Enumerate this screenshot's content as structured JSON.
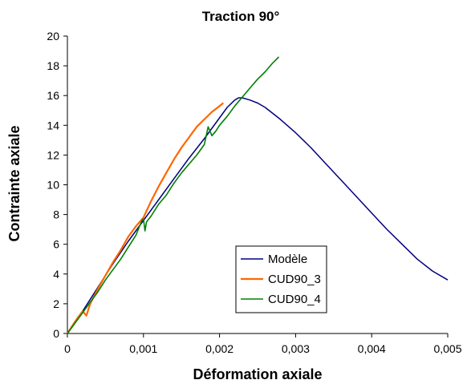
{
  "chart_data": {
    "type": "line",
    "title": "Traction 90°",
    "xlabel": "Déformation axiale",
    "ylabel": "Contrainte axiale",
    "xlim": [
      0,
      0.005
    ],
    "ylim": [
      0,
      20
    ],
    "x_ticks": [
      0,
      0.001,
      0.002,
      0.003,
      0.004,
      0.005
    ],
    "x_tick_labels": [
      "0",
      "0,001",
      "0,002",
      "0,003",
      "0,004",
      "0,005"
    ],
    "y_ticks": [
      0,
      2,
      4,
      6,
      8,
      10,
      12,
      14,
      16,
      18,
      20
    ],
    "y_tick_labels": [
      "0",
      "2",
      "4",
      "6",
      "8",
      "10",
      "12",
      "14",
      "16",
      "18",
      "20"
    ],
    "grid": false,
    "legend_position": "bottom-right",
    "series": [
      {
        "name": "Modèle",
        "color": "#000080",
        "x": [
          0,
          0.0002,
          0.0004,
          0.0006,
          0.0008,
          0.001,
          0.0012,
          0.0014,
          0.0016,
          0.0018,
          0.002,
          0.0021,
          0.0022,
          0.00225,
          0.0023,
          0.0024,
          0.0025,
          0.0026,
          0.0028,
          0.003,
          0.0032,
          0.0034,
          0.0036,
          0.0038,
          0.004,
          0.0042,
          0.0044,
          0.0046,
          0.0048,
          0.005
        ],
        "y": [
          0,
          1.5,
          3.1,
          4.7,
          6.2,
          7.6,
          9.0,
          10.4,
          11.8,
          13.1,
          14.5,
          15.2,
          15.7,
          15.85,
          15.85,
          15.7,
          15.5,
          15.2,
          14.4,
          13.5,
          12.5,
          11.4,
          10.3,
          9.2,
          8.1,
          7.0,
          6.0,
          5.0,
          4.2,
          3.6
        ]
      },
      {
        "name": "CUD90_3",
        "color": "#FF6600",
        "x": [
          0,
          0.0001,
          0.0002,
          0.00025,
          0.0003,
          0.0004,
          0.0005,
          0.0006,
          0.0007,
          0.0008,
          0.0009,
          0.001,
          0.0011,
          0.0012,
          0.0013,
          0.0014,
          0.0015,
          0.0016,
          0.0017,
          0.0018,
          0.0019,
          0.002,
          0.00205
        ],
        "y": [
          0,
          0.8,
          1.5,
          1.2,
          2.0,
          3.0,
          3.9,
          4.8,
          5.6,
          6.5,
          7.2,
          7.8,
          8.9,
          9.9,
          10.8,
          11.7,
          12.5,
          13.2,
          13.9,
          14.4,
          14.9,
          15.3,
          15.5
        ]
      },
      {
        "name": "CUD90_4",
        "color": "#008000",
        "x": [
          0,
          0.0001,
          0.0002,
          0.0003,
          0.0004,
          0.0005,
          0.0006,
          0.0007,
          0.0008,
          0.0009,
          0.00098,
          0.001,
          0.00102,
          0.00104,
          0.0011,
          0.0012,
          0.0013,
          0.0014,
          0.0015,
          0.0016,
          0.0017,
          0.0018,
          0.00185,
          0.0019,
          0.00195,
          0.002,
          0.0021,
          0.0022,
          0.0023,
          0.0024,
          0.0025,
          0.0026,
          0.0027,
          0.00278
        ],
        "y": [
          0,
          0.7,
          1.4,
          2.1,
          2.8,
          3.6,
          4.3,
          5.0,
          5.8,
          6.6,
          7.6,
          7.7,
          6.9,
          7.5,
          7.9,
          8.7,
          9.3,
          10.1,
          10.8,
          11.4,
          12.0,
          12.7,
          13.9,
          13.3,
          13.6,
          14.0,
          14.6,
          15.3,
          15.9,
          16.5,
          17.1,
          17.6,
          18.2,
          18.6
        ]
      }
    ]
  }
}
